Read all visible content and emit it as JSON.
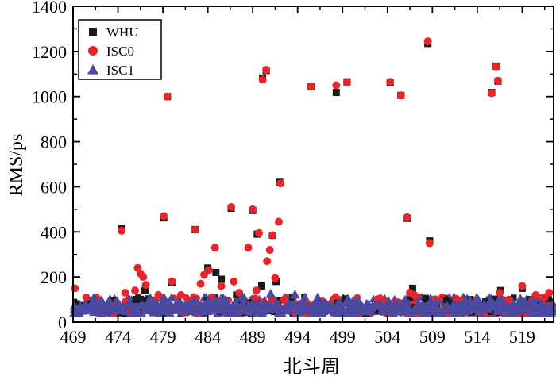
{
  "chart_data": {
    "type": "scatter",
    "xlabel": "北斗周",
    "ylabel": "RMS/ps",
    "xlim": [
      469,
      522.5
    ],
    "ylim": [
      0,
      1400
    ],
    "x_ticks": [
      469,
      474,
      479,
      484,
      489,
      494,
      499,
      504,
      509,
      514,
      519
    ],
    "y_ticks": [
      0,
      200,
      400,
      600,
      800,
      1000,
      1200,
      1400
    ],
    "legend_position": "top-left",
    "series": [
      {
        "name": "WHU",
        "marker": "square",
        "color": "#1a1a1a",
        "points": [
          [
            474.4,
            415
          ],
          [
            479.1,
            462
          ],
          [
            479.5,
            1000
          ],
          [
            480.0,
            175
          ],
          [
            482.6,
            410
          ],
          [
            484.0,
            240
          ],
          [
            484.9,
            220
          ],
          [
            485.5,
            190
          ],
          [
            486.6,
            505
          ],
          [
            487.2,
            120
          ],
          [
            489.0,
            495
          ],
          [
            489.5,
            390
          ],
          [
            490.1,
            1082
          ],
          [
            490.5,
            1115
          ],
          [
            491.2,
            385
          ],
          [
            492.0,
            620
          ],
          [
            491.6,
            180
          ],
          [
            490.0,
            160
          ],
          [
            476.0,
            100
          ],
          [
            477.0,
            140
          ],
          [
            495.5,
            1045
          ],
          [
            498.3,
            1018
          ],
          [
            499.5,
            1065
          ],
          [
            504.3,
            1062
          ],
          [
            505.5,
            1005
          ],
          [
            506.2,
            460
          ],
          [
            506.8,
            150
          ],
          [
            508.5,
            1235
          ],
          [
            508.7,
            360
          ],
          [
            515.6,
            1018
          ],
          [
            516.1,
            1135
          ],
          [
            516.3,
            1068
          ],
          [
            516.6,
            140
          ],
          [
            519.0,
            150
          ]
        ]
      },
      {
        "name": "ISC0",
        "marker": "circle",
        "color": "#e8262a",
        "points": [
          [
            469.2,
            150
          ],
          [
            474.4,
            405
          ],
          [
            474.8,
            130
          ],
          [
            475.9,
            140
          ],
          [
            476.2,
            240
          ],
          [
            476.5,
            215
          ],
          [
            476.8,
            200
          ],
          [
            477.1,
            165
          ],
          [
            478.5,
            120
          ],
          [
            479.1,
            470
          ],
          [
            479.5,
            1000
          ],
          [
            480.0,
            180
          ],
          [
            481.0,
            120
          ],
          [
            482.6,
            410
          ],
          [
            483.2,
            170
          ],
          [
            483.6,
            210
          ],
          [
            484.1,
            230
          ],
          [
            484.8,
            330
          ],
          [
            485.5,
            160
          ],
          [
            486.6,
            510
          ],
          [
            486.9,
            180
          ],
          [
            487.5,
            130
          ],
          [
            488.5,
            330
          ],
          [
            489.0,
            500
          ],
          [
            489.4,
            140
          ],
          [
            489.7,
            395
          ],
          [
            490.1,
            1075
          ],
          [
            490.5,
            1118
          ],
          [
            490.6,
            270
          ],
          [
            490.9,
            320
          ],
          [
            491.2,
            385
          ],
          [
            491.5,
            195
          ],
          [
            491.9,
            445
          ],
          [
            492.1,
            615
          ],
          [
            492.5,
            100
          ],
          [
            495.5,
            1045
          ],
          [
            498.3,
            1050
          ],
          [
            499.5,
            1065
          ],
          [
            504.3,
            1065
          ],
          [
            505.5,
            1005
          ],
          [
            506.2,
            465
          ],
          [
            506.5,
            130
          ],
          [
            507.0,
            120
          ],
          [
            508.5,
            1245
          ],
          [
            508.7,
            350
          ],
          [
            515.6,
            1015
          ],
          [
            516.1,
            1133
          ],
          [
            516.3,
            1070
          ],
          [
            516.5,
            130
          ],
          [
            517.5,
            100
          ],
          [
            519.0,
            160
          ],
          [
            520.5,
            120
          ],
          [
            521.5,
            110
          ],
          [
            522.0,
            130
          ]
        ]
      },
      {
        "name": "ISC1",
        "marker": "triangle",
        "color": "#4b4aa0",
        "points": [
          [
            493.7,
            122
          ],
          [
            482.5,
            95
          ],
          [
            487.8,
            110
          ],
          [
            491.0,
            125
          ]
        ]
      }
    ],
    "noise_band": {
      "description": "dense cluster across all weeks",
      "x_range": [
        469,
        522.5
      ],
      "y_range": [
        30,
        110
      ]
    }
  }
}
